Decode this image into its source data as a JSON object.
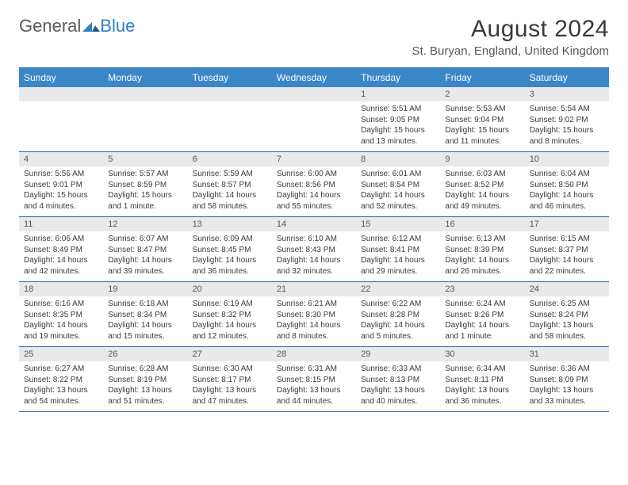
{
  "brand": {
    "part1": "General",
    "part2": "Blue"
  },
  "title": "August 2024",
  "location": "St. Buryan, England, United Kingdom",
  "colors": {
    "header_bg": "#3a87c8",
    "header_border": "#2b6aa0",
    "day_number_bg": "#e9e9e9",
    "text_primary": "#3a3a3a",
    "text_muted": "#bbbbbb",
    "brand_blue": "#2f7fc1",
    "brand_gray": "#5a5a5a"
  },
  "weekdays": [
    "Sunday",
    "Monday",
    "Tuesday",
    "Wednesday",
    "Thursday",
    "Friday",
    "Saturday"
  ],
  "weeks": [
    [
      {
        "blank": true
      },
      {
        "blank": true
      },
      {
        "blank": true
      },
      {
        "blank": true
      },
      {
        "day": "1",
        "sunrise": "Sunrise: 5:51 AM",
        "sunset": "Sunset: 9:05 PM",
        "daylight": "Daylight: 15 hours and 13 minutes."
      },
      {
        "day": "2",
        "sunrise": "Sunrise: 5:53 AM",
        "sunset": "Sunset: 9:04 PM",
        "daylight": "Daylight: 15 hours and 11 minutes."
      },
      {
        "day": "3",
        "sunrise": "Sunrise: 5:54 AM",
        "sunset": "Sunset: 9:02 PM",
        "daylight": "Daylight: 15 hours and 8 minutes."
      }
    ],
    [
      {
        "day": "4",
        "sunrise": "Sunrise: 5:56 AM",
        "sunset": "Sunset: 9:01 PM",
        "daylight": "Daylight: 15 hours and 4 minutes."
      },
      {
        "day": "5",
        "sunrise": "Sunrise: 5:57 AM",
        "sunset": "Sunset: 8:59 PM",
        "daylight": "Daylight: 15 hours and 1 minute."
      },
      {
        "day": "6",
        "sunrise": "Sunrise: 5:59 AM",
        "sunset": "Sunset: 8:57 PM",
        "daylight": "Daylight: 14 hours and 58 minutes."
      },
      {
        "day": "7",
        "sunrise": "Sunrise: 6:00 AM",
        "sunset": "Sunset: 8:56 PM",
        "daylight": "Daylight: 14 hours and 55 minutes."
      },
      {
        "day": "8",
        "sunrise": "Sunrise: 6:01 AM",
        "sunset": "Sunset: 8:54 PM",
        "daylight": "Daylight: 14 hours and 52 minutes."
      },
      {
        "day": "9",
        "sunrise": "Sunrise: 6:03 AM",
        "sunset": "Sunset: 8:52 PM",
        "daylight": "Daylight: 14 hours and 49 minutes."
      },
      {
        "day": "10",
        "sunrise": "Sunrise: 6:04 AM",
        "sunset": "Sunset: 8:50 PM",
        "daylight": "Daylight: 14 hours and 46 minutes."
      }
    ],
    [
      {
        "day": "11",
        "sunrise": "Sunrise: 6:06 AM",
        "sunset": "Sunset: 8:49 PM",
        "daylight": "Daylight: 14 hours and 42 minutes."
      },
      {
        "day": "12",
        "sunrise": "Sunrise: 6:07 AM",
        "sunset": "Sunset: 8:47 PM",
        "daylight": "Daylight: 14 hours and 39 minutes."
      },
      {
        "day": "13",
        "sunrise": "Sunrise: 6:09 AM",
        "sunset": "Sunset: 8:45 PM",
        "daylight": "Daylight: 14 hours and 36 minutes."
      },
      {
        "day": "14",
        "sunrise": "Sunrise: 6:10 AM",
        "sunset": "Sunset: 8:43 PM",
        "daylight": "Daylight: 14 hours and 32 minutes."
      },
      {
        "day": "15",
        "sunrise": "Sunrise: 6:12 AM",
        "sunset": "Sunset: 8:41 PM",
        "daylight": "Daylight: 14 hours and 29 minutes."
      },
      {
        "day": "16",
        "sunrise": "Sunrise: 6:13 AM",
        "sunset": "Sunset: 8:39 PM",
        "daylight": "Daylight: 14 hours and 26 minutes."
      },
      {
        "day": "17",
        "sunrise": "Sunrise: 6:15 AM",
        "sunset": "Sunset: 8:37 PM",
        "daylight": "Daylight: 14 hours and 22 minutes."
      }
    ],
    [
      {
        "day": "18",
        "sunrise": "Sunrise: 6:16 AM",
        "sunset": "Sunset: 8:35 PM",
        "daylight": "Daylight: 14 hours and 19 minutes."
      },
      {
        "day": "19",
        "sunrise": "Sunrise: 6:18 AM",
        "sunset": "Sunset: 8:34 PM",
        "daylight": "Daylight: 14 hours and 15 minutes."
      },
      {
        "day": "20",
        "sunrise": "Sunrise: 6:19 AM",
        "sunset": "Sunset: 8:32 PM",
        "daylight": "Daylight: 14 hours and 12 minutes."
      },
      {
        "day": "21",
        "sunrise": "Sunrise: 6:21 AM",
        "sunset": "Sunset: 8:30 PM",
        "daylight": "Daylight: 14 hours and 8 minutes."
      },
      {
        "day": "22",
        "sunrise": "Sunrise: 6:22 AM",
        "sunset": "Sunset: 8:28 PM",
        "daylight": "Daylight: 14 hours and 5 minutes."
      },
      {
        "day": "23",
        "sunrise": "Sunrise: 6:24 AM",
        "sunset": "Sunset: 8:26 PM",
        "daylight": "Daylight: 14 hours and 1 minute."
      },
      {
        "day": "24",
        "sunrise": "Sunrise: 6:25 AM",
        "sunset": "Sunset: 8:24 PM",
        "daylight": "Daylight: 13 hours and 58 minutes."
      }
    ],
    [
      {
        "day": "25",
        "sunrise": "Sunrise: 6:27 AM",
        "sunset": "Sunset: 8:22 PM",
        "daylight": "Daylight: 13 hours and 54 minutes."
      },
      {
        "day": "26",
        "sunrise": "Sunrise: 6:28 AM",
        "sunset": "Sunset: 8:19 PM",
        "daylight": "Daylight: 13 hours and 51 minutes."
      },
      {
        "day": "27",
        "sunrise": "Sunrise: 6:30 AM",
        "sunset": "Sunset: 8:17 PM",
        "daylight": "Daylight: 13 hours and 47 minutes."
      },
      {
        "day": "28",
        "sunrise": "Sunrise: 6:31 AM",
        "sunset": "Sunset: 8:15 PM",
        "daylight": "Daylight: 13 hours and 44 minutes."
      },
      {
        "day": "29",
        "sunrise": "Sunrise: 6:33 AM",
        "sunset": "Sunset: 8:13 PM",
        "daylight": "Daylight: 13 hours and 40 minutes."
      },
      {
        "day": "30",
        "sunrise": "Sunrise: 6:34 AM",
        "sunset": "Sunset: 8:11 PM",
        "daylight": "Daylight: 13 hours and 36 minutes."
      },
      {
        "day": "31",
        "sunrise": "Sunrise: 6:36 AM",
        "sunset": "Sunset: 8:09 PM",
        "daylight": "Daylight: 13 hours and 33 minutes."
      }
    ]
  ]
}
